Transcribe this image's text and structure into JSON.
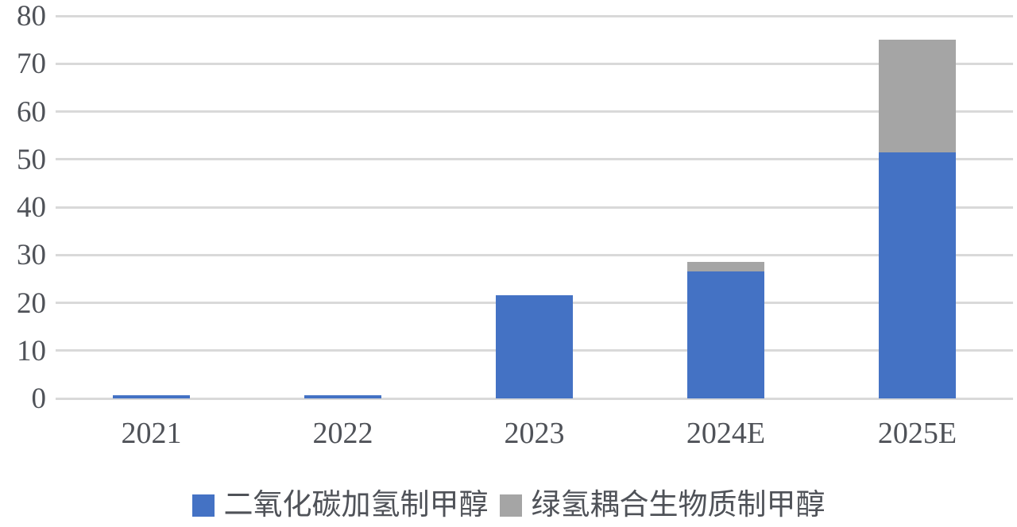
{
  "chart_data": {
    "type": "bar",
    "stacked": true,
    "title": "",
    "xlabel": "",
    "ylabel": "",
    "categories": [
      "2021",
      "2022",
      "2023",
      "2024E",
      "2025E"
    ],
    "series": [
      {
        "name": "二氧化碳加氢制甲醇",
        "color": "#4472C4",
        "values": [
          0.6,
          0.6,
          21.5,
          26.5,
          51.5
        ]
      },
      {
        "name": "绿氢耦合生物质制甲醇",
        "color": "#A5A5A5",
        "values": [
          0,
          0,
          0,
          2,
          23.5
        ]
      }
    ],
    "ylim": [
      0,
      80
    ],
    "ytick_step": 10,
    "yticks": [
      0,
      10,
      20,
      30,
      40,
      50,
      60,
      70,
      80
    ],
    "grid": true,
    "gridline_color": "#D9D9D9",
    "axis_text_color": "#4F5258",
    "legend_position": "bottom"
  }
}
